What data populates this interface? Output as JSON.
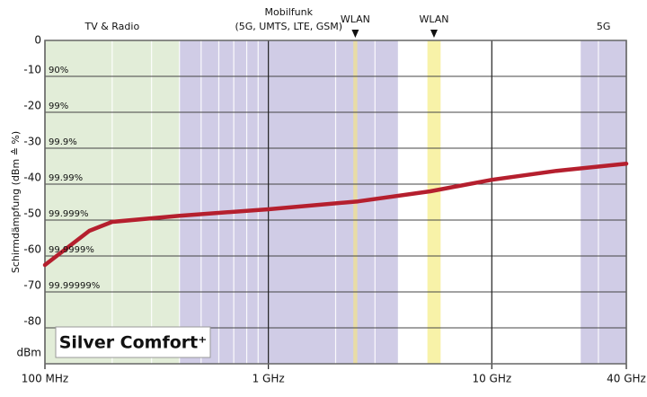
{
  "chart_data": {
    "type": "line",
    "y_label": "Schirmdämpfung (dBm ≙ %)",
    "y_unit": "dBm",
    "x_log": true,
    "grid": true,
    "minor_grid": true,
    "xlim": [
      100,
      40000
    ],
    "xticks": [
      {
        "value": 100,
        "label": "100 MHz"
      },
      {
        "value": 1000,
        "label": "1 GHz"
      },
      {
        "value": 10000,
        "label": "10 GHz"
      },
      {
        "value": 40000,
        "label": "40 GHz"
      }
    ],
    "ylim": [
      -90,
      0
    ],
    "yticks": [
      0,
      -10,
      -20,
      -30,
      -40,
      -50,
      -60,
      -70,
      -80
    ],
    "y_annotations": [
      {
        "value": -10,
        "label": "90%"
      },
      {
        "value": -20,
        "label": "99%"
      },
      {
        "value": -30,
        "label": "99.9%"
      },
      {
        "value": -40,
        "label": "99.99%"
      },
      {
        "value": -50,
        "label": "99.999%"
      },
      {
        "value": -60,
        "label": "99.9999%"
      },
      {
        "value": -70,
        "label": "99.99999%"
      }
    ],
    "bands": [
      {
        "label": [
          "TV & Radio"
        ],
        "start": 100,
        "end": 400,
        "color": "#e2edd8"
      },
      {
        "label": [
          "Mobilfunk",
          "(5G, UMTS, LTE, GSM)"
        ],
        "start": 400,
        "end": 3800,
        "color": "#d0cce6"
      },
      {
        "label": [
          "WLAN"
        ],
        "start": 2400,
        "end": 2500,
        "color": "#e8dca6",
        "marker": true
      },
      {
        "label": [
          "WLAN"
        ],
        "start": 5150,
        "end": 5900,
        "color": "#f8f2a8",
        "marker": true
      },
      {
        "label": [
          "5G"
        ],
        "start": 25000,
        "end": 40000,
        "color": "#d0cce6"
      }
    ],
    "x": [
      100,
      158,
      200,
      400,
      1000,
      2520,
      5300,
      10000,
      19500,
      40000
    ],
    "series": [
      {
        "name": "Silver Comfort⁺",
        "color": "#b51f2e",
        "values": [
          -62.5,
          -53,
          -50.5,
          -48.8,
          -47,
          -44.8,
          -42,
          -38.8,
          -36.3,
          -34.3
        ]
      }
    ]
  }
}
